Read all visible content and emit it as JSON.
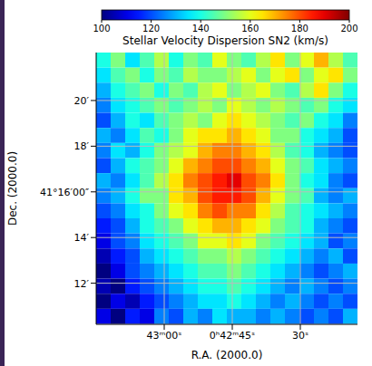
{
  "chart_data": {
    "type": "heatmap",
    "title": "Stellar Velocity Dispersion SN2 (km/s)",
    "x_label": "R.A. (2000.0)",
    "y_label": "Dec. (2000.0)",
    "x": [
      73.4,
      70.2,
      67.0,
      63.8,
      60.6,
      57.4,
      54.2,
      51.0,
      47.8,
      44.6,
      41.4,
      38.2,
      35.0,
      31.8,
      28.6,
      25.4,
      22.2,
      19.0
    ],
    "y": [
      21.77,
      21.11,
      20.45,
      19.79,
      19.13,
      18.47,
      17.81,
      17.15,
      16.49,
      15.83,
      15.17,
      14.51,
      13.85,
      13.19,
      12.53,
      11.87,
      11.21,
      10.55
    ],
    "cells": [
      [
        140,
        150,
        135,
        145,
        155,
        140,
        150,
        145,
        160,
        150,
        145,
        155,
        165,
        150,
        160,
        170,
        155,
        145
      ],
      [
        135,
        145,
        150,
        140,
        150,
        145,
        155,
        150,
        150,
        155,
        160,
        150,
        160,
        165,
        150,
        160,
        165,
        150
      ],
      [
        130,
        140,
        145,
        150,
        140,
        150,
        145,
        155,
        160,
        150,
        155,
        160,
        150,
        145,
        155,
        165,
        150,
        140
      ],
      [
        125,
        135,
        140,
        145,
        150,
        145,
        150,
        155,
        150,
        160,
        155,
        150,
        155,
        150,
        145,
        150,
        140,
        135
      ],
      [
        120,
        130,
        140,
        135,
        145,
        150,
        155,
        150,
        160,
        165,
        160,
        155,
        150,
        145,
        150,
        140,
        135,
        125
      ],
      [
        130,
        125,
        135,
        145,
        140,
        150,
        160,
        165,
        165,
        170,
        165,
        160,
        150,
        150,
        140,
        135,
        130,
        120
      ],
      [
        125,
        135,
        130,
        140,
        150,
        155,
        160,
        170,
        175,
        175,
        170,
        165,
        155,
        145,
        140,
        130,
        125,
        120
      ],
      [
        120,
        130,
        140,
        145,
        150,
        160,
        170,
        175,
        180,
        180,
        175,
        170,
        160,
        150,
        145,
        135,
        130,
        125
      ],
      [
        130,
        125,
        135,
        145,
        155,
        165,
        175,
        180,
        185,
        190,
        180,
        175,
        165,
        150,
        140,
        135,
        125,
        120
      ],
      [
        125,
        130,
        140,
        150,
        150,
        165,
        170,
        180,
        185,
        185,
        180,
        170,
        160,
        150,
        145,
        130,
        125,
        130
      ],
      [
        120,
        125,
        135,
        140,
        150,
        160,
        165,
        175,
        180,
        175,
        175,
        165,
        155,
        145,
        140,
        135,
        130,
        125
      ],
      [
        115,
        120,
        130,
        140,
        145,
        150,
        160,
        165,
        170,
        170,
        165,
        160,
        150,
        145,
        140,
        130,
        125,
        120
      ],
      [
        110,
        120,
        125,
        135,
        140,
        145,
        150,
        160,
        160,
        165,
        160,
        150,
        145,
        140,
        135,
        130,
        120,
        125
      ],
      [
        105,
        115,
        120,
        130,
        135,
        140,
        145,
        150,
        150,
        155,
        150,
        145,
        140,
        135,
        130,
        125,
        130,
        120
      ],
      [
        100,
        110,
        120,
        125,
        130,
        135,
        140,
        145,
        145,
        150,
        145,
        140,
        135,
        130,
        125,
        120,
        125,
        130
      ],
      [
        105,
        100,
        115,
        120,
        125,
        130,
        135,
        140,
        140,
        145,
        140,
        135,
        130,
        125,
        130,
        125,
        120,
        125
      ],
      [
        100,
        110,
        105,
        115,
        120,
        125,
        130,
        135,
        135,
        140,
        135,
        130,
        125,
        130,
        125,
        120,
        125,
        120
      ],
      [
        110,
        100,
        115,
        110,
        125,
        120,
        130,
        125,
        135,
        130,
        130,
        125,
        130,
        125,
        120,
        125,
        120,
        130
      ]
    ],
    "xlim": [
      75.0,
      17.4
    ],
    "xticks": [
      {
        "value": 60,
        "label": "43ᵐ00ˢ"
      },
      {
        "value": 45,
        "label": "0ʰ42ᵐ45ˢ"
      },
      {
        "value": 30,
        "label": "30ˢ"
      }
    ],
    "ylim": [
      10.2,
      22.1
    ],
    "yticks": [
      {
        "value": 12,
        "label": "12′"
      },
      {
        "value": 14,
        "label": "14′"
      },
      {
        "value": 16,
        "label": "41°16′00″"
      },
      {
        "value": 18,
        "label": "18′"
      },
      {
        "value": 20,
        "label": "20′"
      }
    ],
    "colorbar_range": [
      100,
      200
    ],
    "colorbar_ticks": [
      100,
      120,
      140,
      160,
      180,
      200
    ],
    "grid": true
  }
}
